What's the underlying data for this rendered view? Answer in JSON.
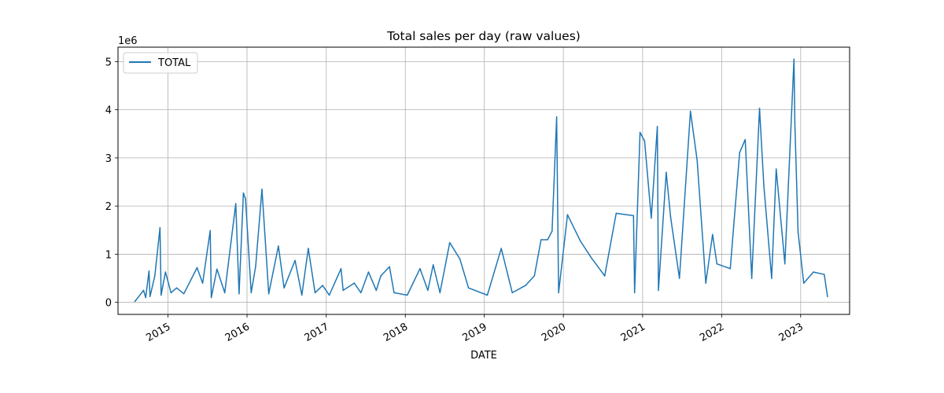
{
  "chart_data": {
    "type": "line",
    "title": "Total sales per day (raw values)",
    "xlabel": "DATE",
    "ylabel": "",
    "y_multiplier_label": "1e6",
    "xlim": [
      "2014-05-15",
      "2023-08-15"
    ],
    "ylim": [
      -0.25,
      5.3
    ],
    "x_ticks": [
      "2015",
      "2016",
      "2017",
      "2018",
      "2019",
      "2020",
      "2021",
      "2022",
      "2023"
    ],
    "y_ticks": [
      "0",
      "1",
      "2",
      "3",
      "4",
      "5"
    ],
    "grid": true,
    "legend_position": "top-left",
    "series": [
      {
        "name": "TOTAL",
        "color": "#1f77b4",
        "x": [
          "2014-08-01",
          "2014-09-10",
          "2014-09-20",
          "2014-10-05",
          "2014-10-10",
          "2014-11-01",
          "2014-11-25",
          "2014-11-30",
          "2014-12-20",
          "2015-01-15",
          "2015-02-10",
          "2015-03-15",
          "2015-05-15",
          "2015-06-10",
          "2015-07-15",
          "2015-07-20",
          "2015-08-15",
          "2015-09-20",
          "2015-11-10",
          "2015-11-25",
          "2015-12-15",
          "2015-12-25",
          "2016-01-20",
          "2016-02-10",
          "2016-03-10",
          "2016-04-10",
          "2016-05-25",
          "2016-06-20",
          "2016-08-10",
          "2016-09-10",
          "2016-10-10",
          "2016-11-10",
          "2016-12-15",
          "2017-01-15",
          "2017-03-10",
          "2017-03-20",
          "2017-05-10",
          "2017-06-10",
          "2017-07-15",
          "2017-08-20",
          "2017-09-10",
          "2017-10-20",
          "2017-11-10",
          "2018-01-10",
          "2018-03-10",
          "2018-04-15",
          "2018-05-10",
          "2018-06-10",
          "2018-07-25",
          "2018-09-10",
          "2018-10-20",
          "2019-01-15",
          "2019-03-20",
          "2019-05-10",
          "2019-07-10",
          "2019-08-20",
          "2019-09-20",
          "2019-10-20",
          "2019-11-10",
          "2019-12-01",
          "2019-12-10",
          "2020-01-20",
          "2020-03-20",
          "2020-05-10",
          "2020-07-10",
          "2020-09-01",
          "2020-11-20",
          "2020-11-25",
          "2020-12-20",
          "2021-01-10",
          "2021-02-10",
          "2021-03-10",
          "2021-03-15",
          "2021-04-20",
          "2021-05-10",
          "2021-06-20",
          "2021-08-10",
          "2021-09-10",
          "2021-10-20",
          "2021-11-20",
          "2021-12-10",
          "2022-02-10",
          "2022-03-25",
          "2022-04-20",
          "2022-05-20",
          "2022-06-25",
          "2022-07-15",
          "2022-08-20",
          "2022-09-10",
          "2022-10-20",
          "2022-12-01",
          "2022-12-05",
          "2022-12-20",
          "2023-01-15",
          "2023-03-01",
          "2023-04-20",
          "2023-05-05"
        ],
        "values": [
          0.02,
          0.25,
          0.1,
          0.65,
          0.12,
          0.55,
          1.55,
          0.15,
          0.63,
          0.2,
          0.3,
          0.18,
          0.72,
          0.4,
          1.49,
          0.1,
          0.69,
          0.2,
          2.05,
          0.18,
          2.27,
          2.15,
          0.2,
          0.75,
          2.35,
          0.18,
          1.17,
          0.3,
          0.87,
          0.15,
          1.12,
          0.2,
          0.35,
          0.15,
          0.7,
          0.25,
          0.4,
          0.2,
          0.63,
          0.25,
          0.55,
          0.74,
          0.2,
          0.15,
          0.7,
          0.25,
          0.78,
          0.2,
          1.24,
          0.9,
          0.3,
          0.15,
          1.12,
          0.2,
          0.35,
          0.55,
          1.3,
          1.3,
          1.48,
          3.85,
          0.2,
          1.82,
          1.27,
          0.92,
          0.55,
          1.85,
          1.8,
          0.2,
          3.53,
          3.35,
          1.75,
          3.65,
          0.25,
          2.7,
          1.78,
          0.5,
          3.97,
          2.95,
          0.4,
          1.41,
          0.8,
          0.7,
          3.11,
          3.38,
          0.5,
          4.03,
          2.42,
          0.5,
          2.77,
          0.8,
          5.05,
          3.73,
          1.46,
          0.4,
          0.63,
          0.58,
          0.12
        ]
      }
    ]
  }
}
